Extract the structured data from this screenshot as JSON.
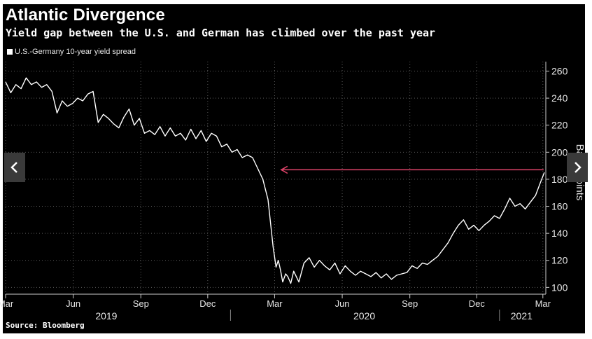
{
  "header": {
    "title": "Atlantic Divergence",
    "subtitle": "Yield gap between the U.S. and German has climbed over the past year"
  },
  "legend": {
    "label": "U.S.-Germany 10-year yield spread"
  },
  "source": "Source: Bloomberg",
  "navigation": {
    "prev_icon": "chevron-left-icon",
    "next_icon": "chevron-right-icon"
  },
  "colors": {
    "background": "#000000",
    "line": "#ffffff",
    "arrow": "#e0446a",
    "grid": "#5a5a5a"
  },
  "chart_data": {
    "type": "line",
    "title": "Atlantic Divergence",
    "subtitle": "Yield gap between the U.S. and German has climbed over the past year",
    "ylabel": "Basis points",
    "ylim": [
      95,
      267
    ],
    "yticks": [
      100,
      120,
      140,
      160,
      180,
      200,
      220,
      240,
      260
    ],
    "y_axis_position": "right",
    "grid": true,
    "legend_position": "top-left",
    "xlim": [
      "2019-03-01",
      "2021-03-05"
    ],
    "x_month_ticks": [
      {
        "label": "Mar",
        "date": "2019-03-01"
      },
      {
        "label": "Jun",
        "date": "2019-06-01"
      },
      {
        "label": "Sep",
        "date": "2019-09-01"
      },
      {
        "label": "Dec",
        "date": "2019-12-01"
      },
      {
        "label": "Mar",
        "date": "2020-03-01"
      },
      {
        "label": "Jun",
        "date": "2020-06-01"
      },
      {
        "label": "Sep",
        "date": "2020-09-01"
      },
      {
        "label": "Dec",
        "date": "2020-12-01"
      },
      {
        "label": "Mar",
        "date": "2021-03-01"
      }
    ],
    "x_year_labels": [
      {
        "label": "2019",
        "date": "2019-07-16"
      },
      {
        "label": "2020",
        "date": "2020-07-01"
      },
      {
        "label": "2021",
        "date": "2021-01-31"
      }
    ],
    "year_separators": [
      "2020-01-01",
      "2021-01-01"
    ],
    "series": [
      {
        "name": "U.S.-Germany 10-year yield spread",
        "x": [
          "2019-03-01",
          "2019-03-08",
          "2019-03-15",
          "2019-03-22",
          "2019-03-29",
          "2019-04-05",
          "2019-04-12",
          "2019-04-19",
          "2019-04-26",
          "2019-05-03",
          "2019-05-10",
          "2019-05-17",
          "2019-05-24",
          "2019-05-31",
          "2019-06-07",
          "2019-06-14",
          "2019-06-21",
          "2019-06-28",
          "2019-07-05",
          "2019-07-12",
          "2019-07-19",
          "2019-07-26",
          "2019-08-02",
          "2019-08-09",
          "2019-08-16",
          "2019-08-23",
          "2019-08-30",
          "2019-09-06",
          "2019-09-13",
          "2019-09-20",
          "2019-09-27",
          "2019-10-04",
          "2019-10-11",
          "2019-10-18",
          "2019-10-25",
          "2019-11-01",
          "2019-11-08",
          "2019-11-15",
          "2019-11-22",
          "2019-11-29",
          "2019-12-06",
          "2019-12-13",
          "2019-12-20",
          "2019-12-27",
          "2020-01-03",
          "2020-01-10",
          "2020-01-17",
          "2020-01-24",
          "2020-01-31",
          "2020-02-07",
          "2020-02-14",
          "2020-02-21",
          "2020-02-28",
          "2020-03-03",
          "2020-03-06",
          "2020-03-09",
          "2020-03-12",
          "2020-03-16",
          "2020-03-19",
          "2020-03-23",
          "2020-03-27",
          "2020-04-03",
          "2020-04-10",
          "2020-04-17",
          "2020-04-24",
          "2020-05-01",
          "2020-05-08",
          "2020-05-15",
          "2020-05-22",
          "2020-05-29",
          "2020-06-05",
          "2020-06-12",
          "2020-06-19",
          "2020-06-26",
          "2020-07-03",
          "2020-07-10",
          "2020-07-17",
          "2020-07-24",
          "2020-07-31",
          "2020-08-07",
          "2020-08-14",
          "2020-08-21",
          "2020-08-28",
          "2020-09-04",
          "2020-09-11",
          "2020-09-18",
          "2020-09-25",
          "2020-10-02",
          "2020-10-09",
          "2020-10-16",
          "2020-10-23",
          "2020-10-30",
          "2020-11-06",
          "2020-11-13",
          "2020-11-20",
          "2020-11-27",
          "2020-12-04",
          "2020-12-11",
          "2020-12-18",
          "2020-12-25",
          "2021-01-01",
          "2021-01-08",
          "2021-01-15",
          "2021-01-22",
          "2021-01-29",
          "2021-02-05",
          "2021-02-12",
          "2021-02-19",
          "2021-02-26",
          "2021-03-03"
        ],
        "y": [
          252,
          244,
          250,
          247,
          255,
          250,
          252,
          248,
          250,
          245,
          229,
          238,
          234,
          236,
          240,
          238,
          243,
          245,
          222,
          228,
          225,
          221,
          218,
          226,
          232,
          220,
          225,
          214,
          216,
          213,
          219,
          212,
          218,
          212,
          214,
          209,
          217,
          210,
          216,
          208,
          214,
          212,
          204,
          206,
          200,
          202,
          196,
          198,
          196,
          188,
          180,
          165,
          130,
          115,
          120,
          113,
          104,
          110,
          108,
          103,
          112,
          104,
          118,
          122,
          115,
          120,
          116,
          113,
          118,
          110,
          116,
          112,
          109,
          112,
          110,
          108,
          111,
          107,
          110,
          106,
          109,
          110,
          111,
          116,
          114,
          118,
          117,
          120,
          123,
          128,
          133,
          140,
          146,
          150,
          143,
          146,
          142,
          146,
          149,
          153,
          151,
          158,
          166,
          160,
          162,
          158,
          163,
          168,
          178,
          185
        ]
      }
    ],
    "annotations": [
      {
        "type": "arrow",
        "from": {
          "x": "2021-03-02",
          "y": 187
        },
        "to": {
          "x": "2020-03-10",
          "y": 187
        }
      }
    ]
  }
}
